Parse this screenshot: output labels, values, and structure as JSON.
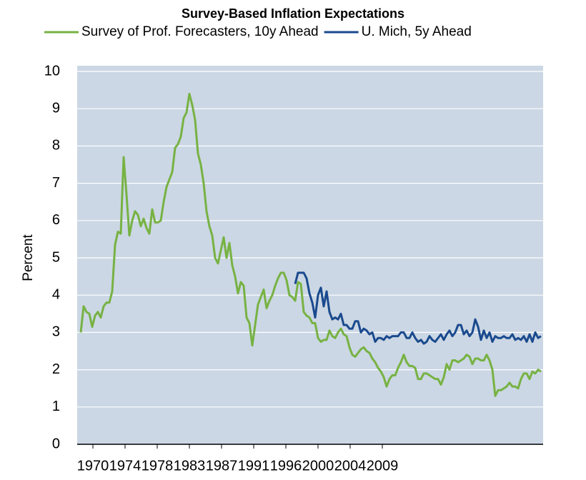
{
  "chart_data": {
    "type": "line",
    "title": "Survey-Based Inflation Expectations",
    "y_label": "Percent",
    "xlim": [
      1967.8,
      2033.0
    ],
    "xticks": [
      {
        "value": 1970,
        "label": "1970"
      },
      {
        "value": 1974.5,
        "label": "1974"
      },
      {
        "value": 1979,
        "label": "1978"
      },
      {
        "value": 1983.5,
        "label": "1983"
      },
      {
        "value": 1988,
        "label": "1987"
      },
      {
        "value": 1992.5,
        "label": "1991"
      },
      {
        "value": 1997,
        "label": "1996"
      },
      {
        "value": 2001.5,
        "label": "2000"
      },
      {
        "value": 2006,
        "label": "2004"
      },
      {
        "value": 2010.5,
        "label": "2009"
      }
    ],
    "ylim": [
      0,
      10
    ],
    "yticks": [
      0,
      1,
      2,
      3,
      4,
      5,
      6,
      7,
      8,
      9,
      10
    ],
    "grid": true,
    "background": "#cbd7e4",
    "x": [
      1968.3,
      1968.7,
      1969.1,
      1969.5,
      1969.9,
      1970.3,
      1970.7,
      1971.1,
      1971.5,
      1971.9,
      1972.3,
      1972.7,
      1973.1,
      1973.5,
      1973.9,
      1974.3,
      1974.7,
      1975.1,
      1975.5,
      1975.9,
      1976.3,
      1976.7,
      1977.1,
      1977.5,
      1977.9,
      1978.3,
      1978.7,
      1979.1,
      1979.5,
      1979.9,
      1980.3,
      1980.7,
      1981.1,
      1981.5,
      1981.9,
      1982.3,
      1982.7,
      1983.1,
      1983.5,
      1983.9,
      1984.3,
      1984.7,
      1985.1,
      1985.5,
      1985.9,
      1986.3,
      1986.7,
      1987.1,
      1987.5,
      1987.9,
      1988.3,
      1988.7,
      1989.1,
      1989.5,
      1989.9,
      1990.3,
      1990.7,
      1991.1,
      1991.5,
      1991.9,
      1992.3,
      1992.7,
      1993.1,
      1993.5,
      1993.9,
      1994.3,
      1994.7,
      1995.1,
      1995.5,
      1995.9,
      1996.3,
      1996.7,
      1997.1,
      1997.5,
      1997.9,
      1998.3,
      1998.7,
      1999.1,
      1999.5,
      1999.9,
      2000.3,
      2000.7,
      2001.1,
      2001.5,
      2001.9,
      2002.3,
      2002.7,
      2003.1,
      2003.5,
      2003.9,
      2004.3,
      2004.7,
      2005.1,
      2005.5,
      2005.9,
      2006.3,
      2006.7,
      2007.1,
      2007.5,
      2007.9,
      2008.3,
      2008.7,
      2009.1,
      2009.5,
      2009.9,
      2010.3,
      2010.7,
      2011.1,
      2011.5,
      2011.9,
      2012.3,
      2012.7,
      2013.1,
      2013.5,
      2013.9,
      2014.3,
      2014.7,
      2015.1,
      2015.5,
      2015.9,
      2016.3,
      2016.7,
      2017.1,
      2017.5,
      2017.9,
      2018.3,
      2018.7,
      2019.1,
      2019.5,
      2019.9,
      2020.3,
      2020.7,
      2021.1,
      2021.5,
      2021.9,
      2022.3,
      2022.7,
      2023.1,
      2023.5,
      2023.9,
      2024.3,
      2024.7,
      2025.1,
      2025.5,
      2025.9,
      2026.3,
      2026.7,
      2027.1,
      2027.5,
      2027.9,
      2028.3,
      2028.7,
      2029.1,
      2029.5,
      2029.9,
      2030.3,
      2030.7,
      2031.1,
      2031.5,
      2031.9,
      2032.3,
      2032.7
    ],
    "series": [
      {
        "name": "Survey of Prof. Forecasters, 10y Ahead",
        "color": "#77b243",
        "values": [
          3.0,
          3.7,
          3.55,
          3.5,
          3.15,
          3.45,
          3.55,
          3.4,
          3.7,
          3.8,
          3.8,
          4.1,
          5.35,
          5.7,
          5.65,
          7.7,
          6.7,
          5.6,
          6.0,
          6.25,
          6.15,
          5.85,
          6.05,
          5.8,
          5.65,
          6.3,
          5.95,
          5.95,
          6.0,
          6.5,
          6.9,
          7.1,
          7.3,
          7.95,
          8.05,
          8.25,
          8.75,
          8.9,
          9.4,
          9.1,
          8.7,
          7.8,
          7.5,
          7.0,
          6.25,
          5.85,
          5.6,
          5.0,
          4.85,
          5.2,
          5.55,
          5.0,
          5.4,
          4.8,
          4.5,
          4.05,
          4.35,
          4.25,
          3.4,
          3.25,
          2.65,
          3.2,
          3.75,
          3.95,
          4.15,
          3.65,
          3.85,
          4.0,
          4.25,
          4.45,
          4.6,
          4.6,
          4.4,
          4.0,
          3.95,
          3.85,
          4.35,
          4.3,
          3.55,
          3.45,
          3.4,
          3.25,
          3.25,
          2.85,
          2.75,
          2.8,
          2.8,
          3.05,
          2.9,
          2.85,
          3.0,
          3.1,
          2.95,
          2.9,
          2.6,
          2.4,
          2.35,
          2.45,
          2.55,
          2.6,
          2.5,
          2.45,
          2.3,
          2.2,
          2.05,
          1.95,
          1.8,
          1.55,
          1.75,
          1.85,
          1.85,
          2.05,
          2.2,
          2.4,
          2.2,
          2.1,
          2.1,
          2.05,
          1.75,
          1.75,
          1.9,
          1.9,
          1.85,
          1.8,
          1.75,
          1.75,
          1.6,
          1.8,
          2.15,
          2.0,
          2.25,
          2.25,
          2.2,
          2.25,
          2.3,
          2.4,
          2.35,
          2.15,
          2.3,
          2.3,
          2.25,
          2.25,
          2.4,
          2.25,
          2.0,
          1.3,
          1.45,
          1.45,
          1.5,
          1.55,
          1.65,
          1.55,
          1.55,
          1.5,
          1.75,
          1.9,
          1.9,
          1.75,
          1.95,
          1.9,
          2.0,
          1.95
        ]
      },
      {
        "name": "U. Mich, 5y Ahead",
        "color": "#1a4a8e",
        "values": [
          null,
          null,
          null,
          null,
          null,
          null,
          null,
          null,
          null,
          null,
          null,
          null,
          null,
          null,
          null,
          null,
          null,
          null,
          null,
          null,
          null,
          null,
          null,
          null,
          null,
          null,
          null,
          null,
          null,
          null,
          null,
          null,
          null,
          null,
          null,
          null,
          null,
          null,
          null,
          null,
          null,
          null,
          null,
          null,
          null,
          null,
          null,
          null,
          null,
          null,
          null,
          null,
          null,
          null,
          null,
          null,
          null,
          null,
          null,
          null,
          null,
          null,
          null,
          null,
          null,
          null,
          null,
          null,
          null,
          null,
          null,
          null,
          null,
          null,
          null,
          4.3,
          4.6,
          4.6,
          4.6,
          4.45,
          4.05,
          3.8,
          3.4,
          4.0,
          4.2,
          3.7,
          4.1,
          3.55,
          3.35,
          3.4,
          3.35,
          3.5,
          3.2,
          3.2,
          3.1,
          3.1,
          3.3,
          3.3,
          3.0,
          3.1,
          3.05,
          2.95,
          3.0,
          2.75,
          2.85,
          2.85,
          2.8,
          2.9,
          2.85,
          2.9,
          2.9,
          2.9,
          3.0,
          3.0,
          2.85,
          2.85,
          3.0,
          2.85,
          2.75,
          2.8,
          2.7,
          2.75,
          2.9,
          2.8,
          2.75,
          2.85,
          2.95,
          2.8,
          2.95,
          3.05,
          2.9,
          3.0,
          3.2,
          3.2,
          2.95,
          3.05,
          2.9,
          3.0,
          3.35,
          3.15,
          2.8,
          3.05,
          2.85,
          3.0,
          2.75,
          2.9,
          2.85,
          2.85,
          2.9,
          2.85,
          2.85,
          2.95,
          2.8,
          2.85,
          2.8,
          2.9,
          2.75,
          2.95,
          2.75,
          3.0,
          2.85,
          2.9
        ]
      }
    ]
  }
}
